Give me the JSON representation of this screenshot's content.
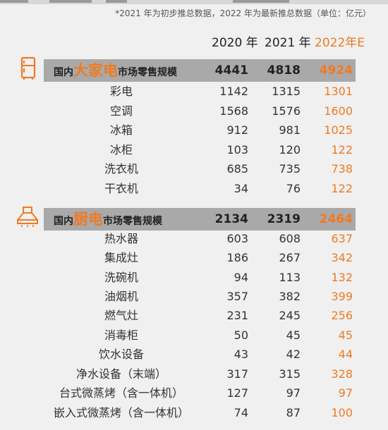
{
  "note": "*2021 年为初步推总数据，2022 年为最新推总数据（单位：亿元）",
  "years": [
    "2020 年",
    "2021 年",
    "2022年E"
  ],
  "colors": {
    "accent": "#f07a22",
    "header_bg": "#a9a9a9",
    "page_bg": "#f0f0f0"
  },
  "sections": [
    {
      "icon": "refrigerator-icon",
      "title_pre": "国内",
      "title_big": "大家电",
      "title_post": "市场零售规模",
      "totals": [
        "4441",
        "4818",
        "4924"
      ],
      "rows": [
        {
          "label": "彩电",
          "values": [
            "1142",
            "1315",
            "1301"
          ]
        },
        {
          "label": "空调",
          "values": [
            "1568",
            "1576",
            "1600"
          ]
        },
        {
          "label": "冰箱",
          "values": [
            "912",
            "981",
            "1025"
          ]
        },
        {
          "label": "冰柜",
          "values": [
            "103",
            "120",
            "122"
          ]
        },
        {
          "label": "洗衣机",
          "values": [
            "685",
            "735",
            "738"
          ]
        },
        {
          "label": "干衣机",
          "values": [
            "34",
            "76",
            "122"
          ]
        }
      ]
    },
    {
      "icon": "range-hood-icon",
      "title_pre": "国内",
      "title_big": "厨电",
      "title_post": "市场零售规模",
      "totals": [
        "2134",
        "2319",
        "2464"
      ],
      "rows": [
        {
          "label": "热水器",
          "values": [
            "603",
            "608",
            "637"
          ]
        },
        {
          "label": "集成灶",
          "values": [
            "186",
            "267",
            "342"
          ]
        },
        {
          "label": "洗碗机",
          "values": [
            "94",
            "113",
            "132"
          ]
        },
        {
          "label": "油烟机",
          "values": [
            "357",
            "382",
            "399"
          ]
        },
        {
          "label": "燃气灶",
          "values": [
            "231",
            "245",
            "256"
          ]
        },
        {
          "label": "消毒柜",
          "values": [
            "50",
            "45",
            "45"
          ]
        },
        {
          "label": "饮水设备",
          "values": [
            "43",
            "42",
            "44"
          ]
        },
        {
          "label": "净水设备（末端）",
          "values": [
            "317",
            "315",
            "328"
          ]
        },
        {
          "label": "台式微蒸烤（含一体机）",
          "values": [
            "127",
            "97",
            "97"
          ]
        },
        {
          "label": "嵌入式微蒸烤（含一体机）",
          "values": [
            "74",
            "87",
            "100"
          ]
        }
      ]
    }
  ]
}
